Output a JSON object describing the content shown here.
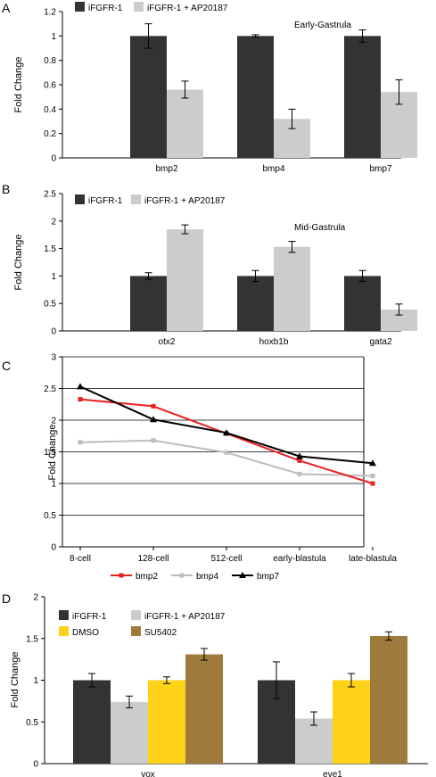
{
  "colors": {
    "ifgfr": "#333333",
    "ifgfr_ap": "#cccccc",
    "dmso": "#ffd21a",
    "su5402": "#9e7b3c",
    "bmp2": "#e8231f",
    "bmp4": "#bdbdbd",
    "bmp7": "#000000"
  },
  "chart_data": [
    {
      "panel": "A",
      "type": "bar",
      "annotation": "Early-Gastrula",
      "ylabel": "Fold Change",
      "ylim": [
        0,
        1.2
      ],
      "yticks": [
        "0",
        "0.2",
        "0.4",
        "0.6",
        "0.8",
        "1",
        "1.2"
      ],
      "categories": [
        "bmp2",
        "bmp4",
        "bmp7"
      ],
      "legend_position": "top-left",
      "series": [
        {
          "name": "iFGFR-1",
          "color_key": "ifgfr",
          "values": [
            1.0,
            1.0,
            1.0
          ],
          "errors": [
            0.1,
            0.01,
            0.05
          ]
        },
        {
          "name": "iFGFR-1 + AP20187",
          "color_key": "ifgfr_ap",
          "values": [
            0.56,
            0.32,
            0.54
          ],
          "errors": [
            0.07,
            0.08,
            0.1
          ]
        }
      ]
    },
    {
      "panel": "B",
      "type": "bar",
      "annotation": "Mid-Gastrula",
      "ylabel": "Fold Change",
      "ylim": [
        0,
        2.5
      ],
      "yticks": [
        "0",
        "0.5",
        "1",
        "1.5",
        "2",
        "2.5"
      ],
      "categories": [
        "otx2",
        "hoxb1b",
        "gata2"
      ],
      "legend_position": "top-left",
      "series": [
        {
          "name": "iFGFR-1",
          "color_key": "ifgfr",
          "values": [
            1.0,
            1.0,
            1.0
          ],
          "errors": [
            0.06,
            0.1,
            0.1
          ]
        },
        {
          "name": "iFGFR-1 + AP20187",
          "color_key": "ifgfr_ap",
          "values": [
            1.85,
            1.53,
            0.39
          ],
          "errors": [
            0.08,
            0.1,
            0.1
          ]
        }
      ]
    },
    {
      "panel": "C",
      "type": "line",
      "ylabel": "Fold Change",
      "ylim": [
        0,
        3
      ],
      "yticks": [
        "0",
        "0.5",
        "1",
        "1.5",
        "2",
        "2.5",
        "3"
      ],
      "categories": [
        "8-cell",
        "128-cell",
        "512-cell",
        "early-blastula",
        "late-blastula"
      ],
      "grid": true,
      "legend_position": "bottom",
      "series": [
        {
          "name": "bmp2",
          "color_key": "bmp2",
          "marker": "square",
          "values": [
            2.33,
            2.22,
            1.79,
            1.36,
            1.0
          ]
        },
        {
          "name": "bmp4",
          "color_key": "bmp4",
          "marker": "square",
          "values": [
            1.65,
            1.68,
            1.49,
            1.15,
            1.12
          ]
        },
        {
          "name": "bmp7",
          "color_key": "bmp7",
          "marker": "triangle",
          "values": [
            2.53,
            2.01,
            1.8,
            1.43,
            1.32
          ]
        }
      ]
    },
    {
      "panel": "D",
      "type": "bar",
      "ylabel": "Fold Change",
      "ylim": [
        0,
        2
      ],
      "yticks": [
        "0",
        "0.5",
        "1",
        "1.5",
        "2"
      ],
      "categories": [
        "vox",
        "eve1"
      ],
      "legend_position": "top-left",
      "series": [
        {
          "name": "iFGFR-1",
          "color_key": "ifgfr",
          "values": [
            1.0,
            1.0
          ],
          "errors": [
            0.08,
            0.22
          ]
        },
        {
          "name": "iFGFR-1 + AP20187",
          "color_key": "ifgfr_ap",
          "values": [
            0.74,
            0.54
          ],
          "errors": [
            0.07,
            0.08
          ]
        },
        {
          "name": "DMSO",
          "color_key": "dmso",
          "values": [
            1.0,
            1.0
          ],
          "errors": [
            0.04,
            0.08
          ]
        },
        {
          "name": "SU5402",
          "color_key": "su5402",
          "values": [
            1.31,
            1.53
          ],
          "errors": [
            0.07,
            0.05
          ]
        }
      ]
    }
  ]
}
